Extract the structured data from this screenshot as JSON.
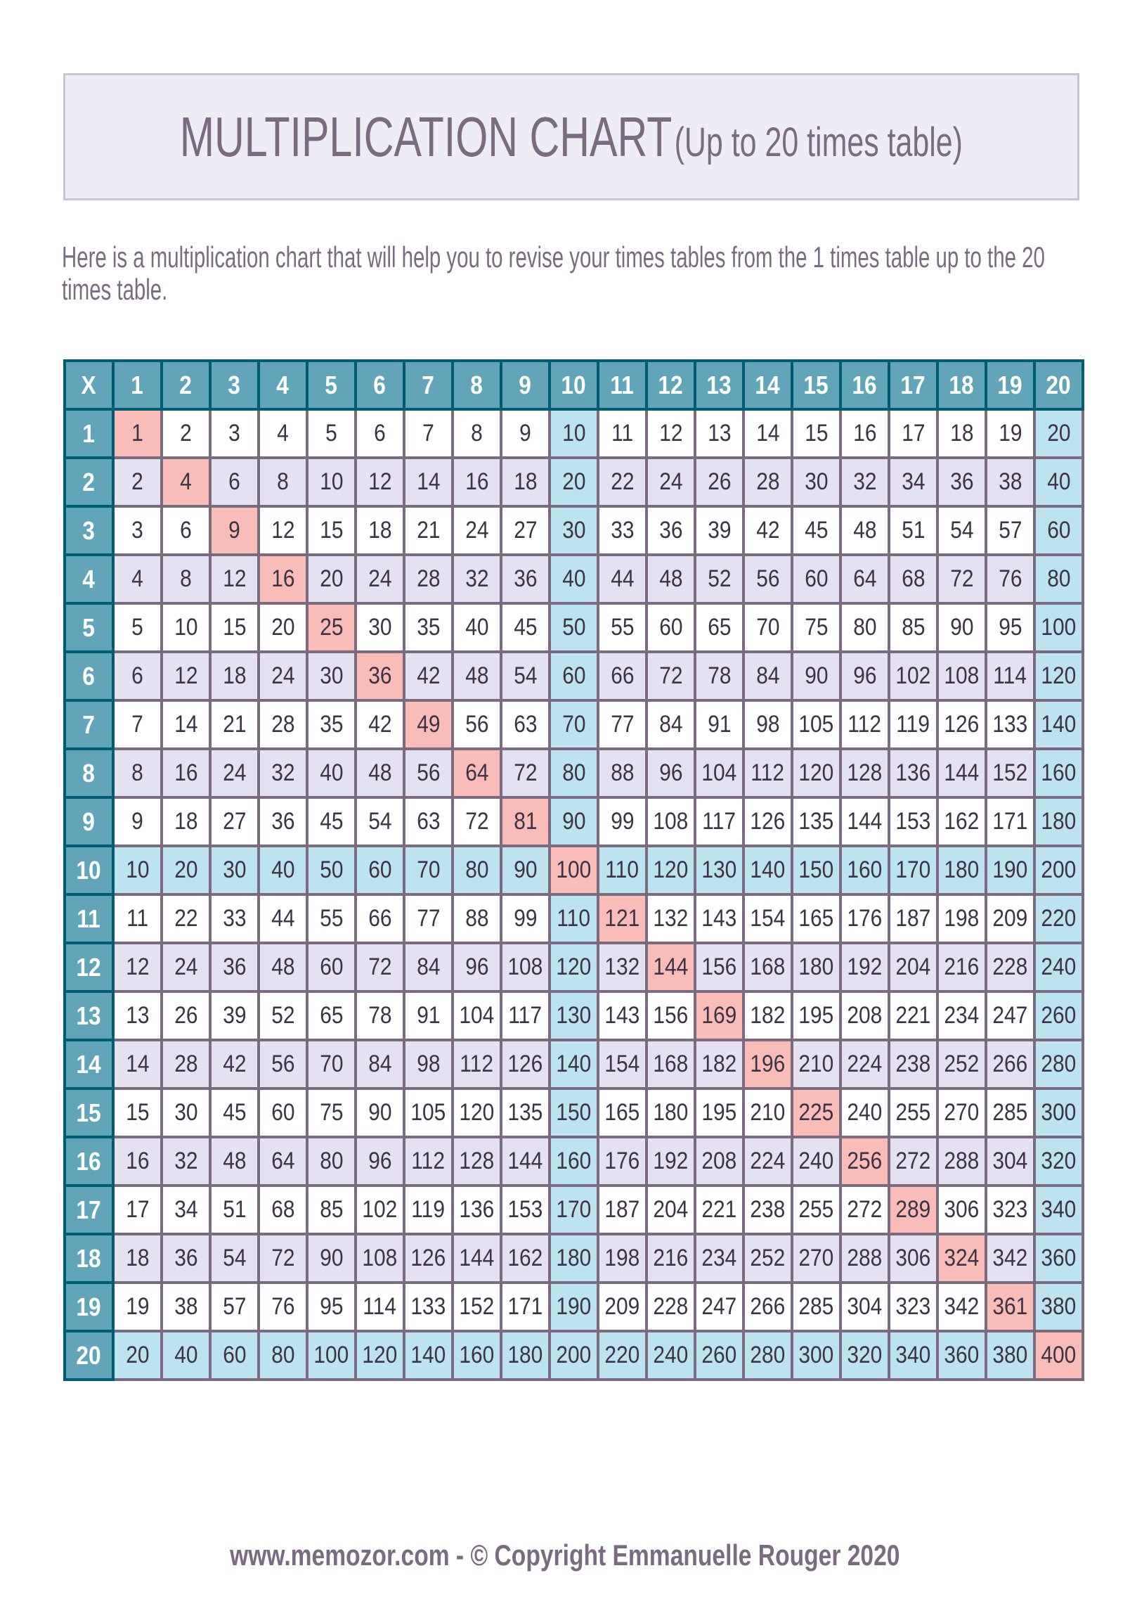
{
  "title": {
    "main": "MULTIPLICATION CHART",
    "sub": "(Up to 20 times table)"
  },
  "description": "Here is a multiplication chart that will help you to revise your times tables from the 1 times table up to the 20 times table.",
  "footer": "www.memozor.com - © Copyright Emmanuelle Rouger 2020",
  "colors": {
    "header": "#62a4b8",
    "header_border": "#005c73",
    "grid": "#7a6b80",
    "even_row": "#e4e1f1",
    "tens": "#bde3ee",
    "squares": "#f9bcb7",
    "text": "#3d3345"
  },
  "chart_data": {
    "type": "table",
    "corner": "X",
    "column_headers": [
      1,
      2,
      3,
      4,
      5,
      6,
      7,
      8,
      9,
      10,
      11,
      12,
      13,
      14,
      15,
      16,
      17,
      18,
      19,
      20
    ],
    "row_headers": [
      1,
      2,
      3,
      4,
      5,
      6,
      7,
      8,
      9,
      10,
      11,
      12,
      13,
      14,
      15,
      16,
      17,
      18,
      19,
      20
    ],
    "rows": [
      [
        1,
        2,
        3,
        4,
        5,
        6,
        7,
        8,
        9,
        10,
        11,
        12,
        13,
        14,
        15,
        16,
        17,
        18,
        19,
        20
      ],
      [
        2,
        4,
        6,
        8,
        10,
        12,
        14,
        16,
        18,
        20,
        22,
        24,
        26,
        28,
        30,
        32,
        34,
        36,
        38,
        40
      ],
      [
        3,
        6,
        9,
        12,
        15,
        18,
        21,
        24,
        27,
        30,
        33,
        36,
        39,
        42,
        45,
        48,
        51,
        54,
        57,
        60
      ],
      [
        4,
        8,
        12,
        16,
        20,
        24,
        28,
        32,
        36,
        40,
        44,
        48,
        52,
        56,
        60,
        64,
        68,
        72,
        76,
        80
      ],
      [
        5,
        10,
        15,
        20,
        25,
        30,
        35,
        40,
        45,
        50,
        55,
        60,
        65,
        70,
        75,
        80,
        85,
        90,
        95,
        100
      ],
      [
        6,
        12,
        18,
        24,
        30,
        36,
        42,
        48,
        54,
        60,
        66,
        72,
        78,
        84,
        90,
        96,
        102,
        108,
        114,
        120
      ],
      [
        7,
        14,
        21,
        28,
        35,
        42,
        49,
        56,
        63,
        70,
        77,
        84,
        91,
        98,
        105,
        112,
        119,
        126,
        133,
        140
      ],
      [
        8,
        16,
        24,
        32,
        40,
        48,
        56,
        64,
        72,
        80,
        88,
        96,
        104,
        112,
        120,
        128,
        136,
        144,
        152,
        160
      ],
      [
        9,
        18,
        27,
        36,
        45,
        54,
        63,
        72,
        81,
        90,
        99,
        108,
        117,
        126,
        135,
        144,
        153,
        162,
        171,
        180
      ],
      [
        10,
        20,
        30,
        40,
        50,
        60,
        70,
        80,
        90,
        100,
        110,
        120,
        130,
        140,
        150,
        160,
        170,
        180,
        190,
        200
      ],
      [
        11,
        22,
        33,
        44,
        55,
        66,
        77,
        88,
        99,
        110,
        121,
        132,
        143,
        154,
        165,
        176,
        187,
        198,
        209,
        220
      ],
      [
        12,
        24,
        36,
        48,
        60,
        72,
        84,
        96,
        108,
        120,
        132,
        144,
        156,
        168,
        180,
        192,
        204,
        216,
        228,
        240
      ],
      [
        13,
        26,
        39,
        52,
        65,
        78,
        91,
        104,
        117,
        130,
        143,
        156,
        169,
        182,
        195,
        208,
        221,
        234,
        247,
        260
      ],
      [
        14,
        28,
        42,
        56,
        70,
        84,
        98,
        112,
        126,
        140,
        154,
        168,
        182,
        196,
        210,
        224,
        238,
        252,
        266,
        280
      ],
      [
        15,
        30,
        45,
        60,
        75,
        90,
        105,
        120,
        135,
        150,
        165,
        180,
        195,
        210,
        225,
        240,
        255,
        270,
        285,
        300
      ],
      [
        16,
        32,
        48,
        64,
        80,
        96,
        112,
        128,
        144,
        160,
        176,
        192,
        208,
        224,
        240,
        256,
        272,
        288,
        304,
        320
      ],
      [
        17,
        34,
        51,
        68,
        85,
        102,
        119,
        136,
        153,
        170,
        187,
        204,
        221,
        238,
        255,
        272,
        289,
        306,
        323,
        340
      ],
      [
        18,
        36,
        54,
        72,
        90,
        108,
        126,
        144,
        162,
        180,
        198,
        216,
        234,
        252,
        270,
        288,
        306,
        324,
        342,
        360
      ],
      [
        19,
        38,
        57,
        76,
        95,
        114,
        133,
        152,
        171,
        190,
        209,
        228,
        247,
        266,
        285,
        304,
        323,
        342,
        361,
        380
      ],
      [
        20,
        40,
        60,
        80,
        100,
        120,
        140,
        160,
        180,
        200,
        220,
        240,
        260,
        280,
        300,
        320,
        340,
        360,
        380,
        400
      ]
    ]
  }
}
